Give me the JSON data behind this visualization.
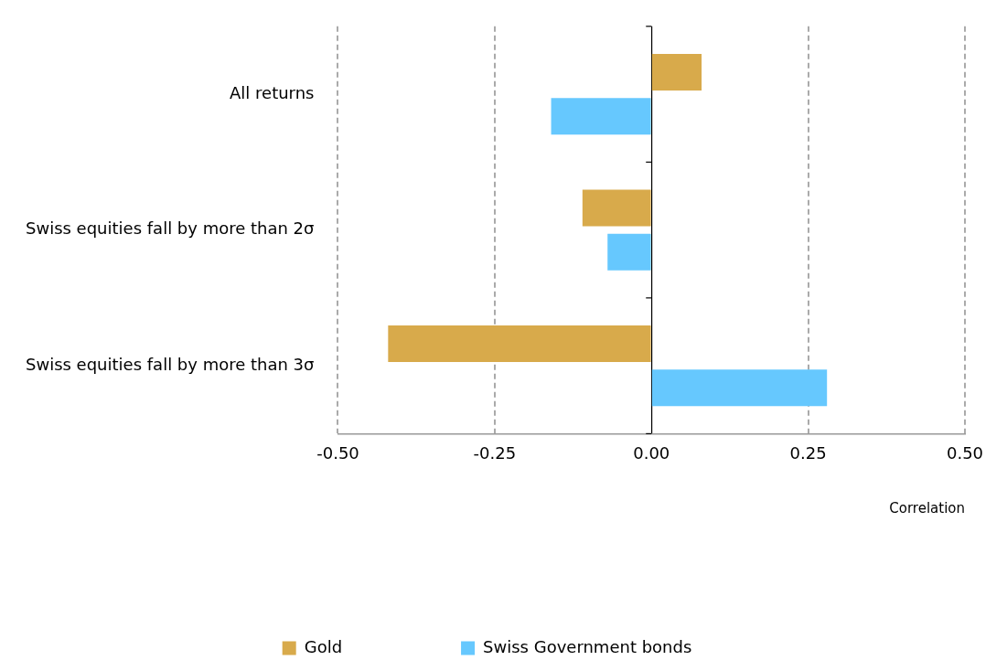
{
  "chart_data": {
    "type": "bar",
    "orientation": "horizontal",
    "xlabel": "Correlation",
    "categories": [
      "All returns",
      "Swiss equities fall by more than 2σ",
      "Swiss equities fall by more than 3σ"
    ],
    "series": [
      {
        "name": "Gold",
        "color": "#d8aa4b",
        "values": [
          0.08,
          -0.11,
          -0.42
        ]
      },
      {
        "name": "Swiss Government bonds",
        "color": "#66c8fe",
        "values": [
          -0.16,
          -0.07,
          0.28
        ]
      }
    ],
    "xlim": [
      -0.5,
      0.5
    ],
    "xticks": [
      {
        "value": -0.5,
        "label": "-0.50"
      },
      {
        "value": -0.25,
        "label": "-0.25"
      },
      {
        "value": 0,
        "label": "0.00"
      },
      {
        "value": 0.25,
        "label": "0.25"
      },
      {
        "value": 0.5,
        "label": "0.50"
      }
    ],
    "grid": "x",
    "legend": "bottom"
  }
}
